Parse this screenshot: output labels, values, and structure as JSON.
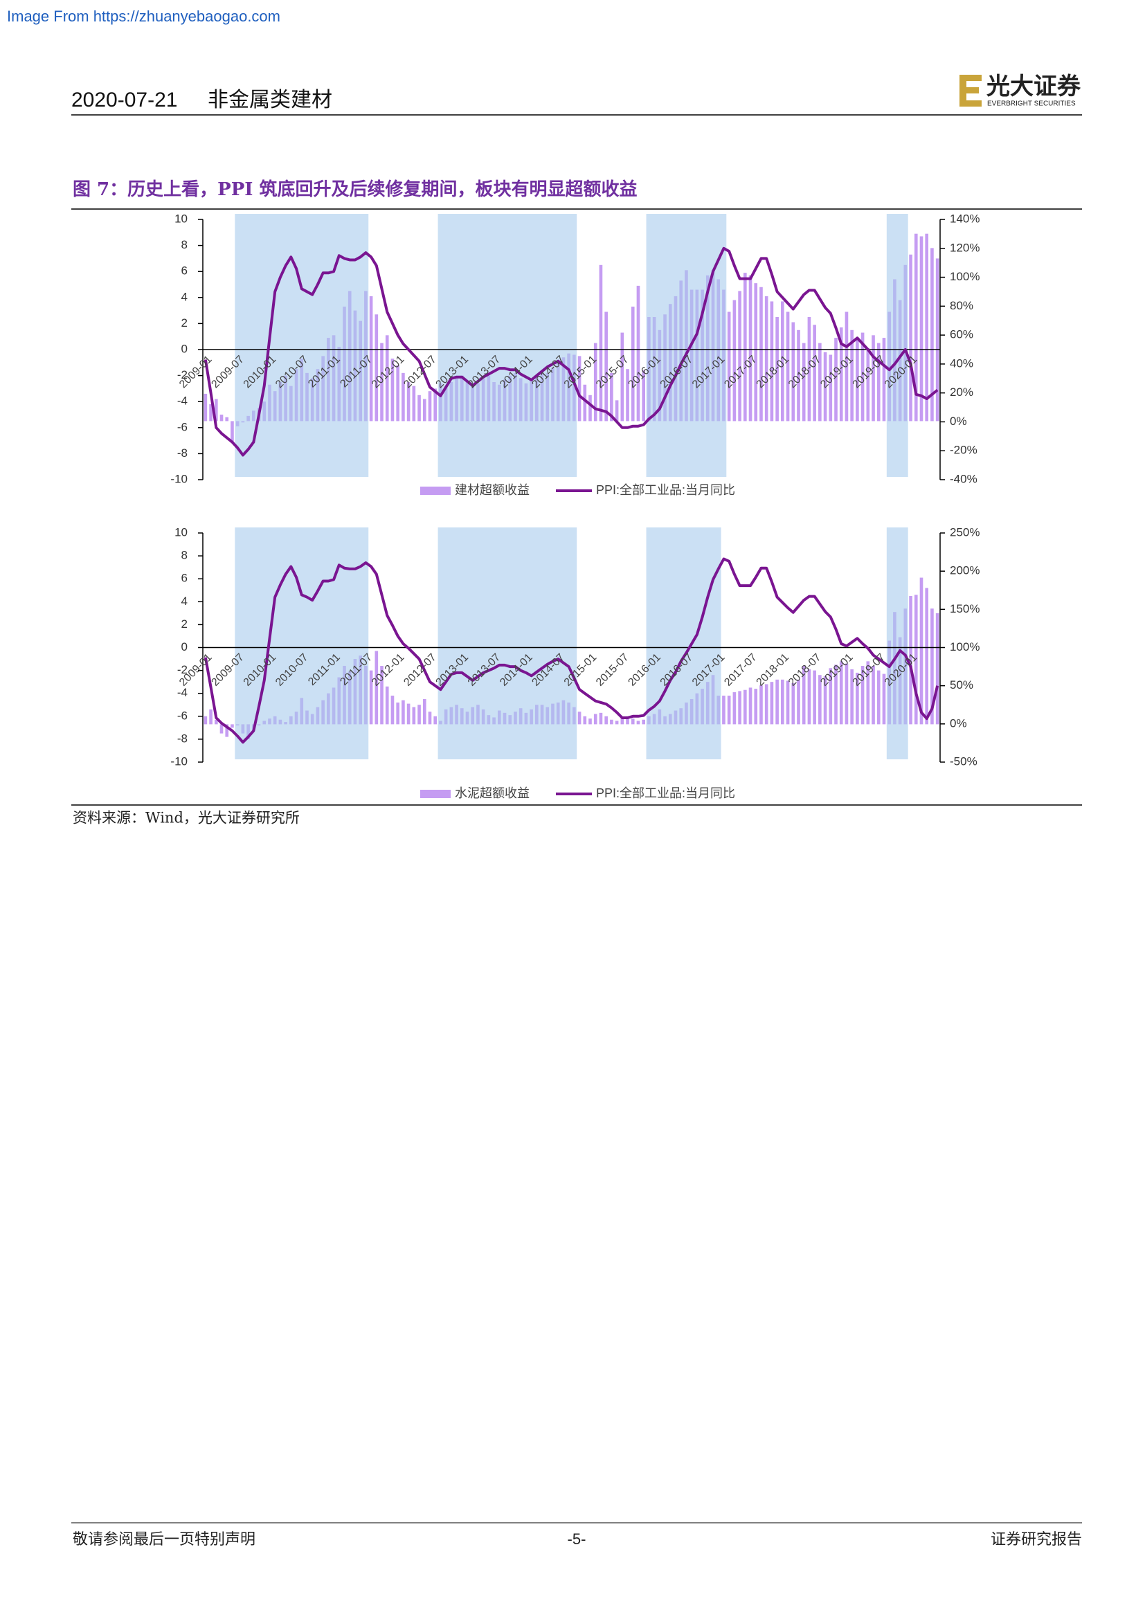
{
  "source_link": "Image From https://zhuanyebaogao.com",
  "header": {
    "date": "2020-07-21",
    "sector": "非金属类建材"
  },
  "logo": {
    "name": "光大证券",
    "english": "EVERBRIGHT SECURITIES"
  },
  "figure_caption": "图 7：历史上看，PPI 筑底回升及后续修复期间，板块有明显超额收益",
  "chart_data": [
    {
      "type": "combo",
      "categories": [
        "2009-01",
        null,
        null,
        null,
        null,
        null,
        "2009-07",
        null,
        null,
        null,
        null,
        null,
        "2010-01",
        null,
        null,
        null,
        null,
        null,
        "2010-07",
        null,
        null,
        null,
        null,
        null,
        "2011-01",
        null,
        null,
        null,
        null,
        null,
        "2011-07",
        null,
        null,
        null,
        null,
        null,
        "2012-01",
        null,
        null,
        null,
        null,
        null,
        "2012-07",
        null,
        null,
        null,
        null,
        null,
        "2013-01",
        null,
        null,
        null,
        null,
        null,
        "2013-07",
        null,
        null,
        null,
        null,
        null,
        "2014-01",
        null,
        null,
        null,
        null,
        null,
        "2014-07",
        null,
        null,
        null,
        null,
        null,
        "2015-01",
        null,
        null,
        null,
        null,
        null,
        "2015-07",
        null,
        null,
        null,
        null,
        null,
        "2016-01",
        null,
        null,
        null,
        null,
        null,
        "2016-07",
        null,
        null,
        null,
        null,
        null,
        "2017-01",
        null,
        null,
        null,
        null,
        null,
        "2017-07",
        null,
        null,
        null,
        null,
        null,
        "2018-01",
        null,
        null,
        null,
        null,
        null,
        "2018-07",
        null,
        null,
        null,
        null,
        null,
        "2019-01",
        null,
        null,
        null,
        null,
        null,
        "2019-07",
        null,
        null,
        null,
        null,
        null,
        "2020-01",
        null,
        null,
        null,
        null,
        null
      ],
      "series": [
        {
          "name": "建材超额收益",
          "type": "bar",
          "color": "#c59cf2",
          "values": [
            -3.4,
            -4.2,
            -3.8,
            -5.0,
            -5.2,
            -7.1,
            -5.9,
            -5.6,
            -5.1,
            -4.7,
            -4.5,
            -4.0,
            -2.7,
            -3.2,
            -2.5,
            -2.0,
            -2.8,
            -1.5,
            -0.7,
            -1.8,
            -2.2,
            -1.5,
            -0.5,
            0.9,
            1.1,
            0.2,
            3.3,
            4.5,
            3.0,
            2.2,
            4.5,
            4.1,
            2.7,
            0.5,
            1.1,
            -0.7,
            -1.2,
            -1.8,
            -2.5,
            -2.8,
            -3.5,
            -3.8,
            -3.2,
            -3.0,
            -2.6,
            -2.9,
            -2.5,
            -2.2,
            -2.0,
            -2.4,
            -2.8,
            -2.6,
            -2.2,
            -2.0,
            -2.5,
            -2.7,
            -2.3,
            -2.0,
            -1.8,
            -2.2,
            -2.6,
            -2.4,
            -2.0,
            -1.6,
            -1.8,
            -1.4,
            -1.0,
            -0.6,
            -0.3,
            -0.4,
            -0.5,
            -2.7,
            -3.5,
            0.5,
            6.5,
            2.9,
            -1.8,
            -3.9,
            1.3,
            -1.5,
            3.3,
            4.9,
            -1.6,
            2.5,
            2.5,
            1.5,
            2.7,
            3.5,
            4.1,
            5.3,
            6.1,
            4.6,
            4.6,
            4.6,
            5.7,
            6.1,
            5.4,
            4.6,
            2.9,
            3.8,
            4.5,
            5.9,
            5.7,
            5.1,
            4.8,
            4.1,
            3.7,
            2.5,
            3.7,
            2.9,
            2.1,
            1.5,
            0.5,
            2.5,
            1.9,
            0.5,
            -0.2,
            -0.4,
            0.9,
            1.7,
            2.9,
            1.5,
            0.9,
            1.3,
            0.1,
            1.1,
            0.5,
            0.9,
            2.9,
            5.4,
            3.8,
            6.5,
            7.3,
            8.9,
            8.7,
            8.9,
            7.8,
            7.0
          ]
        },
        {
          "name": "PPI:全部工业品:当月同比",
          "type": "line",
          "axis": "y2",
          "color": "#7a1591",
          "values": [
            43,
            20,
            -4,
            -8,
            -11,
            -14,
            -18,
            -23,
            -19,
            -14,
            5,
            25,
            58,
            90,
            100,
            108,
            114,
            106,
            92,
            90,
            88,
            95,
            103,
            103,
            104,
            115,
            113,
            112,
            112,
            114,
            117,
            114,
            108,
            92,
            76,
            68,
            60,
            54,
            50,
            46,
            42,
            33,
            24,
            21,
            18,
            24,
            30,
            31,
            31,
            28,
            25,
            28,
            31,
            33,
            35,
            37,
            37,
            36,
            36,
            33,
            31,
            29,
            32,
            35,
            38,
            40,
            42,
            39,
            36,
            27,
            18,
            15,
            12,
            9,
            8,
            7,
            4,
            0,
            -4,
            -4,
            -3,
            -3,
            -2,
            2,
            5,
            9,
            17,
            25,
            32,
            40,
            47,
            54,
            61,
            75,
            90,
            104,
            112,
            120,
            118,
            108,
            99,
            99,
            99,
            106,
            113,
            113,
            102,
            90,
            86,
            82,
            78,
            83,
            88,
            91,
            91,
            85,
            79,
            75,
            65,
            54,
            52,
            55,
            58,
            54,
            50,
            45,
            42,
            39,
            36,
            40,
            45,
            50,
            40,
            19,
            18,
            16,
            19,
            22
          ]
        }
      ],
      "bar_base": -5.5,
      "highlight_ranges": [
        [
          6,
          31
        ],
        [
          44,
          70
        ],
        [
          83,
          98
        ],
        [
          128,
          132
        ]
      ],
      "highlight_color": "#a9cbec",
      "ylim": [
        -10,
        10
      ],
      "yticks": [
        -10,
        -8,
        -6,
        -4,
        -2,
        0,
        2,
        4,
        6,
        8,
        10
      ],
      "y2lim": [
        -40,
        140
      ],
      "y2ticks": [
        {
          "value": -40,
          "label": "-40%"
        },
        {
          "value": -20,
          "label": "-20%"
        },
        {
          "value": 0,
          "label": "0%"
        },
        {
          "value": 20,
          "label": "20%"
        },
        {
          "value": 40,
          "label": "40%"
        },
        {
          "value": 60,
          "label": "60%"
        },
        {
          "value": 80,
          "label": "80%"
        },
        {
          "value": 100,
          "label": "100%"
        },
        {
          "value": 120,
          "label": "120%"
        },
        {
          "value": 140,
          "label": "140%"
        }
      ]
    },
    {
      "type": "combo",
      "categories": [
        "2009-01",
        null,
        null,
        null,
        null,
        null,
        "2009-07",
        null,
        null,
        null,
        null,
        null,
        "2010-01",
        null,
        null,
        null,
        null,
        null,
        "2010-07",
        null,
        null,
        null,
        null,
        null,
        "2011-01",
        null,
        null,
        null,
        null,
        null,
        "2011-07",
        null,
        null,
        null,
        null,
        null,
        "2012-01",
        null,
        null,
        null,
        null,
        null,
        "2012-07",
        null,
        null,
        null,
        null,
        null,
        "2013-01",
        null,
        null,
        null,
        null,
        null,
        "2013-07",
        null,
        null,
        null,
        null,
        null,
        "2014-01",
        null,
        null,
        null,
        null,
        null,
        "2014-07",
        null,
        null,
        null,
        null,
        null,
        "2015-01",
        null,
        null,
        null,
        null,
        null,
        "2015-07",
        null,
        null,
        null,
        null,
        null,
        "2016-01",
        null,
        null,
        null,
        null,
        null,
        "2016-07",
        null,
        null,
        null,
        null,
        null,
        "2017-01",
        null,
        null,
        null,
        null,
        null,
        "2017-07",
        null,
        null,
        null,
        null,
        null,
        "2018-01",
        null,
        null,
        null,
        null,
        null,
        "2018-07",
        null,
        null,
        null,
        null,
        null,
        "2019-01",
        null,
        null,
        null,
        null,
        null,
        "2019-07",
        null,
        null,
        null,
        null,
        null,
        "2020-01",
        null,
        null,
        null,
        null,
        null
      ],
      "series": [
        {
          "name": "水泥超额收益",
          "type": "bar",
          "color": "#c59cf2",
          "values": [
            -6.0,
            -5.4,
            -6.3,
            -7.5,
            -7.8,
            -7.0,
            -6.8,
            -7.5,
            -8.0,
            -7.2,
            -6.8,
            -6.4,
            -6.2,
            -6.0,
            -6.3,
            -6.5,
            -6.0,
            -5.6,
            -4.4,
            -5.5,
            -5.8,
            -5.2,
            -4.6,
            -4.0,
            -3.5,
            -2.6,
            -1.6,
            -2.1,
            -1.0,
            -0.7,
            -1.6,
            -2.0,
            -0.3,
            -1.6,
            -3.4,
            -4.2,
            -4.8,
            -4.6,
            -4.9,
            -5.2,
            -5.0,
            -4.5,
            -5.6,
            -6.0,
            -6.4,
            -5.4,
            -5.2,
            -5.0,
            -5.3,
            -5.6,
            -5.2,
            -5.0,
            -5.4,
            -5.9,
            -6.1,
            -5.5,
            -5.7,
            -5.9,
            -5.6,
            -5.3,
            -5.7,
            -5.4,
            -5.0,
            -5.0,
            -5.2,
            -4.9,
            -4.8,
            -4.6,
            -4.8,
            -5.2,
            -5.6,
            -6.0,
            -6.2,
            -5.8,
            -5.7,
            -6.0,
            -6.3,
            -6.4,
            -6.1,
            -6.0,
            -6.2,
            -6.4,
            -6.3,
            -6.0,
            -5.8,
            -5.4,
            -6.0,
            -5.8,
            -5.5,
            -5.3,
            -4.8,
            -4.5,
            -4.0,
            -3.6,
            -3.0,
            -2.4,
            -4.2,
            -4.2,
            -4.2,
            -3.9,
            -3.8,
            -3.7,
            -3.5,
            -3.6,
            -3.3,
            -3.2,
            -3.0,
            -2.8,
            -2.8,
            -2.9,
            -3.1,
            -2.8,
            -1.6,
            -1.9,
            -2.0,
            -2.4,
            -2.5,
            -1.8,
            -1.5,
            -1.2,
            -1.4,
            -1.9,
            -2.2,
            -1.6,
            -1.2,
            -1.6,
            -2.0,
            -2.3,
            0.6,
            3.1,
            0.9,
            3.4,
            4.5,
            4.6,
            6.1,
            5.2,
            3.4,
            3.0
          ]
        },
        {
          "name": "PPI:全部工业品:当月同比",
          "type": "line",
          "axis": "y2",
          "color": "#7a1591",
          "values": [
            87,
            48,
            8,
            1,
            -4,
            -9,
            -16,
            -24,
            -17,
            -9,
            23,
            57,
            112,
            166,
            182,
            196,
            206,
            192,
            169,
            166,
            162,
            174,
            187,
            187,
            189,
            208,
            204,
            203,
            203,
            206,
            211,
            206,
            196,
            169,
            142,
            129,
            115,
            105,
            99,
            92,
            85,
            70,
            55,
            50,
            45,
            55,
            65,
            67,
            67,
            62,
            57,
            62,
            67,
            70,
            73,
            77,
            77,
            75,
            75,
            70,
            67,
            63,
            68,
            73,
            78,
            82,
            85,
            80,
            75,
            60,
            45,
            40,
            35,
            30,
            28,
            26,
            21,
            15,
            8,
            8,
            10,
            10,
            11,
            18,
            23,
            30,
            43,
            57,
            68,
            82,
            93,
            105,
            117,
            140,
            166,
            189,
            203,
            216,
            213,
            196,
            181,
            181,
            181,
            192,
            204,
            204,
            186,
            166,
            159,
            152,
            146,
            154,
            162,
            167,
            167,
            157,
            147,
            140,
            124,
            105,
            102,
            107,
            112,
            105,
            99,
            90,
            85,
            80,
            75,
            85,
            96,
            90,
            75,
            40,
            15,
            7,
            20,
            50
          ]
        }
      ],
      "bar_base": -6.7,
      "highlight_ranges": [
        [
          6,
          31
        ],
        [
          44,
          70
        ],
        [
          83,
          97
        ],
        [
          128,
          132
        ]
      ],
      "highlight_color": "#a9cbec",
      "ylim": [
        -10,
        10
      ],
      "yticks": [
        -10,
        -8,
        -6,
        -4,
        -2,
        0,
        2,
        4,
        6,
        8,
        10
      ],
      "y2lim": [
        -50,
        250
      ],
      "y2ticks": [
        {
          "value": -50,
          "label": "-50%"
        },
        {
          "value": 0,
          "label": "0%"
        },
        {
          "value": 50,
          "label": "50%"
        },
        {
          "value": 100,
          "label": "100%"
        },
        {
          "value": 150,
          "label": "150%"
        },
        {
          "value": 200,
          "label": "200%"
        },
        {
          "value": 250,
          "label": "250%"
        }
      ]
    }
  ],
  "source": "资料来源：Wind，光大证券研究所",
  "footer": {
    "left": "敬请参阅最后一页特别声明",
    "page": "-5-",
    "right": "证券研究报告"
  }
}
